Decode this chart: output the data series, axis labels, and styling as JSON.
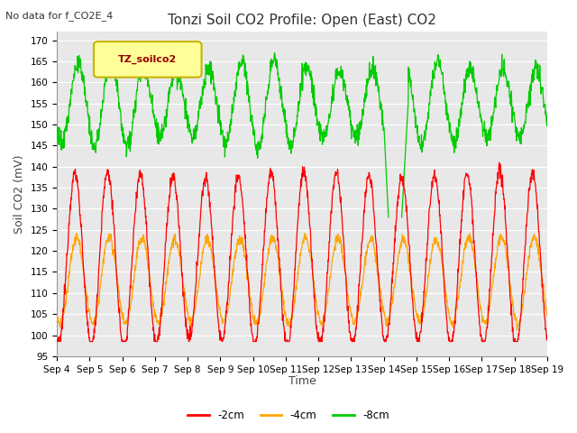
{
  "title": "Tonzi Soil CO2 Profile: Open (East) CO2",
  "subtitle": "No data for f_CO2E_4",
  "ylabel": "Soil CO2 (mV)",
  "xlabel": "Time",
  "ylim": [
    95,
    172
  ],
  "yticks": [
    95,
    100,
    105,
    110,
    115,
    120,
    125,
    130,
    135,
    140,
    145,
    150,
    155,
    160,
    165,
    170
  ],
  "legend_labels": [
    "-2cm",
    "-4cm",
    "-8cm"
  ],
  "legend_colors": [
    "#ff0000",
    "#ffa500",
    "#00cc00"
  ],
  "line_colors": {
    "2cm": "#ff0000",
    "4cm": "#ffa500",
    "8cm": "#00cc00"
  },
  "xtick_labels": [
    "Sep 4",
    "Sep 5",
    "Sep 6",
    "Sep 7",
    "Sep 8",
    "Sep 9",
    "Sep 10",
    "Sep 11",
    "Sep 12",
    "Sep 13",
    "Sep 14",
    "Sep 15",
    "Sep 16",
    "Sep 17",
    "Sep 18",
    "Sep 19"
  ],
  "bg_color": "#e8e8e8",
  "legend_box_color": "#ffff99",
  "legend_box_edge": "#c8b400",
  "legend_text": "TZ_soilco2",
  "legend_text_color": "#990000",
  "fig_facecolor": "#ffffff",
  "title_fontsize": 11,
  "subtitle_fontsize": 8,
  "ylabel_fontsize": 9,
  "xlabel_fontsize": 9,
  "tick_fontsize": 7.5,
  "legend_fontsize": 8.5
}
